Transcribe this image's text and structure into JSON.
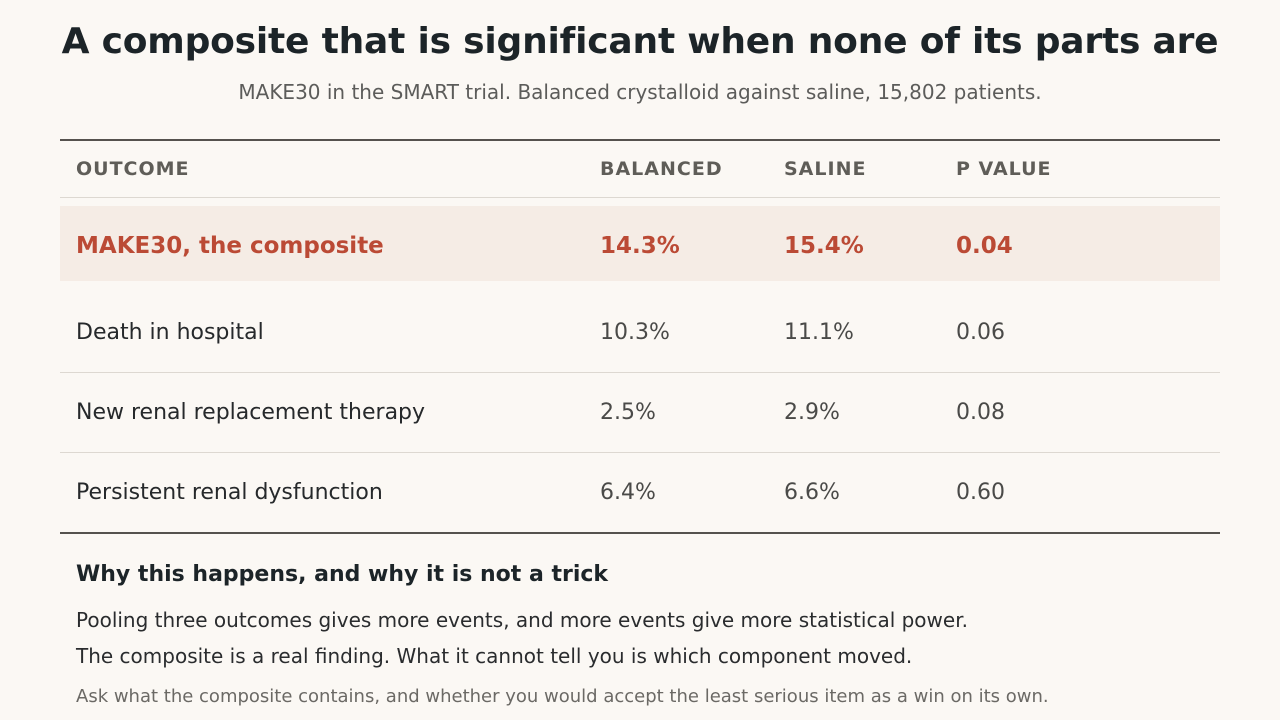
{
  "chart_data": {
    "type": "table",
    "title": "A composite that is significant when none of its parts are",
    "subtitle": "MAKE30 in the SMART trial. Balanced crystalloid against saline, 15,802 patients.",
    "columns": [
      "OUTCOME",
      "BALANCED",
      "SALINE",
      "P VALUE"
    ],
    "highlight": {
      "outcome": "MAKE30, the composite",
      "balanced": "14.3%",
      "saline": "15.4%",
      "p": "0.04"
    },
    "rows": [
      {
        "outcome": "Death in hospital",
        "balanced": "10.3%",
        "saline": "11.1%",
        "p": "0.06"
      },
      {
        "outcome": "New renal replacement therapy",
        "balanced": "2.5%",
        "saline": "2.9%",
        "p": "0.08"
      },
      {
        "outcome": "Persistent renal dysfunction",
        "balanced": "6.4%",
        "saline": "6.6%",
        "p": "0.60"
      }
    ],
    "highlight_color": "#bb4a35"
  },
  "note": {
    "heading": "Why this happens, and why it is not a trick",
    "line1": "Pooling three outcomes gives more events, and more events give more statistical power.",
    "line2": "The composite is a real finding. What it cannot tell you is which component moved.",
    "line3": "Ask what the composite contains, and whether you would accept the least serious item as a win on its own."
  }
}
